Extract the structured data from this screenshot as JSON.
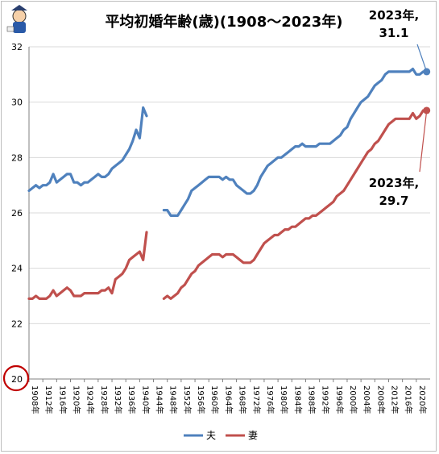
{
  "chart_data": {
    "type": "line",
    "title": "平均初婚年齢(歳)(1908～2023年)",
    "xlabel": "",
    "ylabel": "",
    "ylim": [
      20,
      32
    ],
    "yticks": [
      "20",
      "22",
      "24",
      "26",
      "28",
      "30",
      "32"
    ],
    "xticks": [
      "1908年",
      "1912年",
      "1916年",
      "1920年",
      "1924年",
      "1928年",
      "1932年",
      "1936年",
      "1940年",
      "1944年",
      "1948年",
      "1952年",
      "1956年",
      "1960年",
      "1964年",
      "1968年",
      "1972年",
      "1976年",
      "1980年",
      "1984年",
      "1988年",
      "1992年",
      "1996年",
      "2000年",
      "2004年",
      "2008年",
      "2012年",
      "2016年",
      "2020年"
    ],
    "grid": true,
    "legend_position": "bottom",
    "colors": {
      "husband": "#4f81bd",
      "wife": "#c0504d",
      "highlight": "#c00000"
    },
    "series": [
      {
        "name": "夫",
        "segments": [
          {
            "x": [
              1908,
              1909,
              1910,
              1911,
              1912,
              1913,
              1914,
              1915,
              1916,
              1917,
              1918,
              1919,
              1920,
              1921,
              1922,
              1923,
              1924,
              1925,
              1926,
              1927,
              1928,
              1929,
              1930,
              1931,
              1932,
              1933,
              1934,
              1935,
              1936,
              1937,
              1938,
              1939,
              1940,
              1941,
              1942,
              1943
            ],
            "values": [
              26.8,
              26.9,
              27.0,
              26.9,
              27.0,
              27.0,
              27.1,
              27.4,
              27.1,
              27.2,
              27.3,
              27.4,
              27.4,
              27.1,
              27.1,
              27.0,
              27.1,
              27.1,
              27.2,
              27.3,
              27.4,
              27.3,
              27.3,
              27.4,
              27.6,
              27.7,
              27.8,
              27.9,
              28.1,
              28.3,
              28.6,
              29.0,
              28.7,
              29.8,
              29.5,
              null
            ]
          },
          {
            "x": [
              1947,
              1948,
              1949,
              1950,
              1951,
              1952,
              1953,
              1954,
              1955,
              1956,
              1957,
              1958,
              1959,
              1960,
              1961,
              1962,
              1963,
              1964,
              1965,
              1966,
              1967,
              1968,
              1969,
              1970,
              1971,
              1972,
              1973,
              1974,
              1975,
              1976,
              1977,
              1978,
              1979,
              1980,
              1981,
              1982,
              1983,
              1984,
              1985,
              1986,
              1987,
              1988,
              1989,
              1990,
              1991,
              1992,
              1993,
              1994,
              1995,
              1996,
              1997,
              1998,
              1999,
              2000,
              2001,
              2002,
              2003,
              2004,
              2005,
              2006,
              2007,
              2008,
              2009,
              2010,
              2011,
              2012,
              2013,
              2014,
              2015,
              2016,
              2017,
              2018,
              2019,
              2020,
              2021,
              2022,
              2023
            ],
            "values": [
              26.1,
              26.1,
              25.9,
              25.9,
              25.9,
              26.1,
              26.3,
              26.5,
              26.8,
              26.9,
              27.0,
              27.1,
              27.2,
              27.3,
              27.3,
              27.3,
              27.3,
              27.2,
              27.3,
              27.2,
              27.2,
              27.0,
              26.9,
              26.8,
              26.7,
              26.7,
              26.8,
              27.0,
              27.3,
              27.5,
              27.7,
              27.8,
              27.9,
              28.0,
              28.0,
              28.1,
              28.2,
              28.3,
              28.4,
              28.4,
              28.5,
              28.4,
              28.4,
              28.4,
              28.4,
              28.5,
              28.5,
              28.5,
              28.5,
              28.6,
              28.7,
              28.8,
              29.0,
              29.1,
              29.4,
              29.6,
              29.8,
              30.0,
              30.1,
              30.2,
              30.4,
              30.6,
              30.7,
              30.8,
              31.0,
              31.1,
              31.1,
              31.1,
              31.1,
              31.1,
              31.1,
              31.1,
              31.2,
              31.0,
              31.0,
              31.1,
              31.1
            ]
          }
        ]
      },
      {
        "name": "妻",
        "segments": [
          {
            "x": [
              1908,
              1909,
              1910,
              1911,
              1912,
              1913,
              1914,
              1915,
              1916,
              1917,
              1918,
              1919,
              1920,
              1921,
              1922,
              1923,
              1924,
              1925,
              1926,
              1927,
              1928,
              1929,
              1930,
              1931,
              1932,
              1933,
              1934,
              1935,
              1936,
              1937,
              1938,
              1939,
              1940,
              1941,
              1942
            ],
            "values": [
              22.9,
              22.9,
              23.0,
              22.9,
              22.9,
              22.9,
              23.0,
              23.2,
              23.0,
              23.1,
              23.2,
              23.3,
              23.2,
              23.0,
              23.0,
              23.0,
              23.1,
              23.1,
              23.1,
              23.1,
              23.1,
              23.2,
              23.2,
              23.3,
              23.1,
              23.6,
              23.7,
              23.8,
              24.0,
              24.3,
              24.4,
              24.5,
              24.6,
              24.3,
              25.3
            ]
          },
          {
            "x": [
              1947,
              1948,
              1949,
              1950,
              1951,
              1952,
              1953,
              1954,
              1955,
              1956,
              1957,
              1958,
              1959,
              1960,
              1961,
              1962,
              1963,
              1964,
              1965,
              1966,
              1967,
              1968,
              1969,
              1970,
              1971,
              1972,
              1973,
              1974,
              1975,
              1976,
              1977,
              1978,
              1979,
              1980,
              1981,
              1982,
              1983,
              1984,
              1985,
              1986,
              1987,
              1988,
              1989,
              1990,
              1991,
              1992,
              1993,
              1994,
              1995,
              1996,
              1997,
              1998,
              1999,
              2000,
              2001,
              2002,
              2003,
              2004,
              2005,
              2006,
              2007,
              2008,
              2009,
              2010,
              2011,
              2012,
              2013,
              2014,
              2015,
              2016,
              2017,
              2018,
              2019,
              2020,
              2021,
              2022,
              2023
            ],
            "values": [
              22.9,
              23.0,
              22.9,
              23.0,
              23.1,
              23.3,
              23.4,
              23.6,
              23.8,
              23.9,
              24.1,
              24.2,
              24.3,
              24.4,
              24.5,
              24.5,
              24.5,
              24.4,
              24.5,
              24.5,
              24.5,
              24.4,
              24.3,
              24.2,
              24.2,
              24.2,
              24.3,
              24.5,
              24.7,
              24.9,
              25.0,
              25.1,
              25.2,
              25.2,
              25.3,
              25.4,
              25.4,
              25.5,
              25.5,
              25.6,
              25.7,
              25.8,
              25.8,
              25.9,
              25.9,
              26.0,
              26.1,
              26.2,
              26.3,
              26.4,
              26.6,
              26.7,
              26.8,
              27.0,
              27.2,
              27.4,
              27.6,
              27.8,
              28.0,
              28.2,
              28.3,
              28.5,
              28.6,
              28.8,
              29.0,
              29.2,
              29.3,
              29.4,
              29.4,
              29.4,
              29.4,
              29.4,
              29.6,
              29.4,
              29.5,
              29.7,
              29.7
            ]
          }
        ]
      }
    ],
    "annotations": [
      {
        "series": "夫",
        "lines": [
          "2023年,",
          "31.1"
        ]
      },
      {
        "series": "妻",
        "lines": [
          "2023年,",
          "29.7"
        ]
      }
    ],
    "highlight_label": "20"
  }
}
